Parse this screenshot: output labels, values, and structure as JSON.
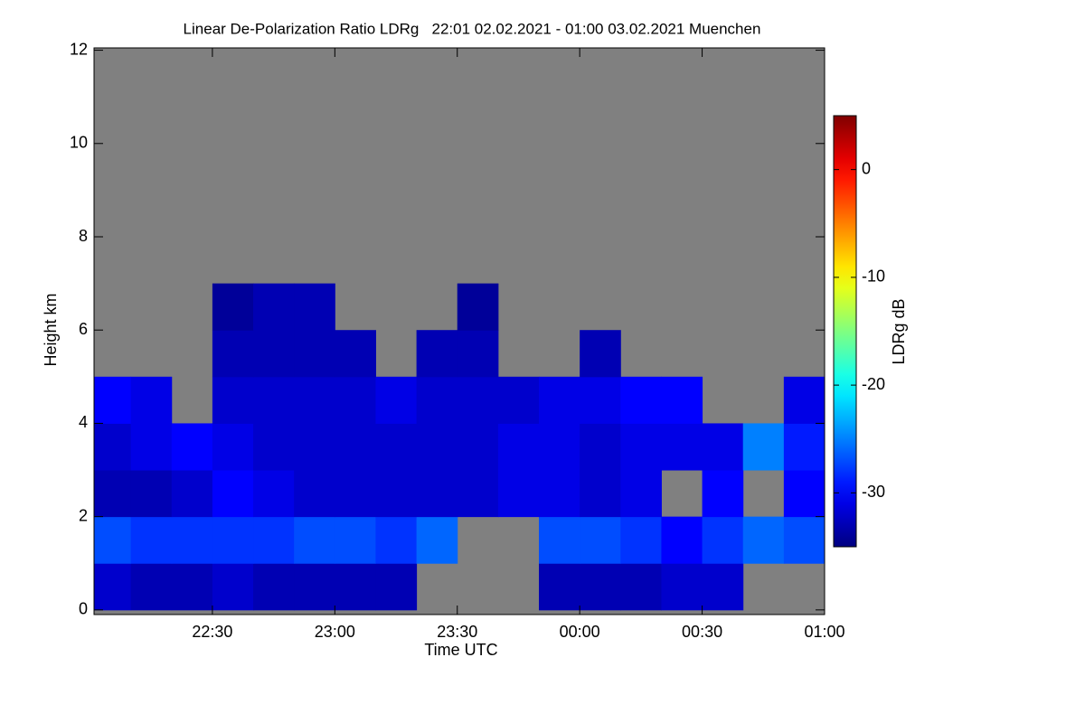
{
  "chart_data": {
    "type": "heatmap",
    "title": "Linear De-Polarization Ratio LDRg   22:01 02.02.2021 - 01:00 03.02.2021 Muenchen",
    "x_label": "Time UTC",
    "y_label": "Height km",
    "colorbar_label": "LDRg dB",
    "xlim": [
      1,
      180
    ],
    "xticks": [
      {
        "value": 30,
        "label": "22:30"
      },
      {
        "value": 60,
        "label": "23:00"
      },
      {
        "value": 90,
        "label": "23:30"
      },
      {
        "value": 120,
        "label": "00:00"
      },
      {
        "value": 150,
        "label": "00:30"
      },
      {
        "value": 180,
        "label": "01:00"
      }
    ],
    "ylim": [
      -0.1,
      12.05
    ],
    "yticks": [
      0,
      2,
      4,
      6,
      8,
      10,
      12
    ],
    "zlim": [
      -35,
      5
    ],
    "zticks": [
      0,
      -10,
      -20,
      -30
    ],
    "no_data_color": "#808080",
    "xbins": [
      1,
      10,
      20,
      30,
      40,
      50,
      60,
      70,
      80,
      90,
      100,
      110,
      120,
      130,
      140,
      150,
      160,
      170,
      180
    ],
    "ybins": [
      0,
      1,
      2,
      3,
      4,
      5,
      6,
      7
    ],
    "z": [
      [
        -32,
        -33,
        -33,
        -32,
        -33,
        -33,
        -33,
        -33,
        null,
        null,
        null,
        -33,
        -33,
        -33,
        -32,
        -32,
        null,
        null
      ],
      [
        -27,
        -28,
        -28,
        -28,
        -28,
        -27,
        -27,
        -28,
        -26,
        null,
        null,
        -27,
        -27,
        -28,
        -30,
        -28,
        -26,
        -27
      ],
      [
        -33,
        -33,
        -32,
        -30,
        -31,
        -32,
        -32,
        -32,
        -32,
        -32,
        -31,
        -31,
        -32,
        -31,
        null,
        -30,
        null,
        -30
      ],
      [
        -32,
        -31,
        -30,
        -31,
        -32,
        -32,
        -32,
        -32,
        -32,
        -32,
        -31,
        -31,
        -32,
        -31,
        -31,
        -31,
        -25,
        -29
      ],
      [
        -30,
        -31,
        null,
        -32,
        -32,
        -32,
        -32,
        -31,
        -32,
        -32,
        -32,
        -31,
        -31,
        -30,
        -30,
        null,
        null,
        -31
      ],
      [
        null,
        null,
        null,
        -33,
        -33,
        -33,
        -33,
        null,
        -33,
        -33,
        null,
        null,
        -33,
        null,
        null,
        null,
        null,
        null
      ],
      [
        null,
        null,
        null,
        -34,
        -33,
        -33,
        null,
        null,
        null,
        -34,
        null,
        null,
        null,
        null,
        null,
        null,
        null,
        null
      ]
    ]
  }
}
